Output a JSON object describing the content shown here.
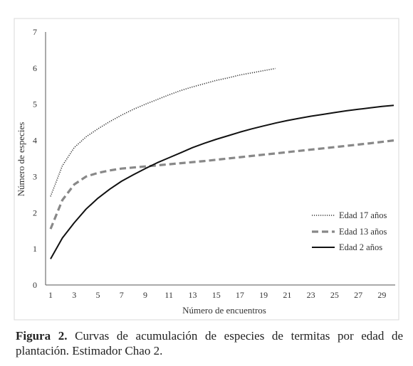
{
  "chart_data": {
    "type": "line",
    "xlabel": "Número de encuentros",
    "ylabel": "Número de especies",
    "xlim": [
      1,
      30
    ],
    "ylim": [
      0,
      7
    ],
    "xticks": [
      1,
      3,
      5,
      7,
      9,
      11,
      13,
      15,
      17,
      19,
      21,
      23,
      25,
      27,
      29
    ],
    "yticks": [
      0,
      1,
      2,
      3,
      4,
      5,
      6,
      7
    ],
    "grid": false,
    "legend": "right",
    "series": [
      {
        "name": "Edad 17 años",
        "style": "dotted",
        "color": "#333333",
        "x": [
          1,
          2,
          3,
          4,
          5,
          6,
          7,
          8,
          9,
          10,
          11,
          12,
          13,
          14,
          15,
          16,
          17,
          18,
          19,
          20
        ],
        "values": [
          2.45,
          3.3,
          3.8,
          4.1,
          4.32,
          4.52,
          4.7,
          4.86,
          5.0,
          5.13,
          5.26,
          5.38,
          5.48,
          5.57,
          5.66,
          5.73,
          5.81,
          5.87,
          5.93,
          5.99
        ]
      },
      {
        "name": "Edad 13 años",
        "style": "dashed",
        "color": "#888888",
        "x": [
          1,
          2,
          3,
          4,
          5,
          6,
          7,
          8,
          9,
          10,
          12,
          14,
          16,
          18,
          20,
          22,
          24,
          26,
          28,
          30
        ],
        "values": [
          1.55,
          2.35,
          2.78,
          3.0,
          3.1,
          3.17,
          3.22,
          3.25,
          3.28,
          3.31,
          3.37,
          3.43,
          3.5,
          3.57,
          3.64,
          3.71,
          3.78,
          3.85,
          3.92,
          4.0
        ]
      },
      {
        "name": "Edad 2 años",
        "style": "solid",
        "color": "#111111",
        "x": [
          1,
          2,
          3,
          4,
          5,
          6,
          7,
          8,
          9,
          10,
          11,
          12,
          13,
          14,
          15,
          16,
          17,
          18,
          19,
          20,
          21,
          22,
          23,
          24,
          25,
          26,
          27,
          28,
          29,
          30
        ],
        "values": [
          0.72,
          1.3,
          1.72,
          2.1,
          2.4,
          2.65,
          2.87,
          3.05,
          3.22,
          3.38,
          3.52,
          3.66,
          3.8,
          3.92,
          4.03,
          4.13,
          4.23,
          4.32,
          4.4,
          4.48,
          4.55,
          4.61,
          4.67,
          4.72,
          4.77,
          4.82,
          4.86,
          4.9,
          4.94,
          4.97
        ]
      }
    ]
  },
  "caption": {
    "label": "Figura 2.",
    "text": " Curvas de acumulación de especies de termitas por edad de plantación. Estimador Chao 2."
  }
}
